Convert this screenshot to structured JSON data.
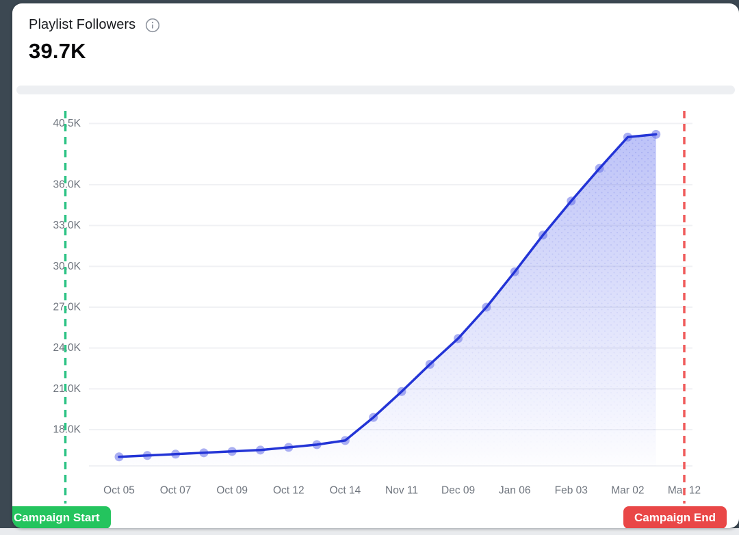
{
  "header": {
    "title": "Playlist Followers",
    "value": "39.7K",
    "info_icon": "info-icon"
  },
  "chart_data": {
    "type": "area",
    "title": "Playlist Followers",
    "current_value": "39.7K",
    "unit": "K followers",
    "x_axis": {
      "labels": [
        "Oct 05",
        "Oct 07",
        "Oct 09",
        "Oct 12",
        "Oct 14",
        "Nov 11",
        "Dec 09",
        "Jan 06",
        "Feb 03",
        "Mar 02",
        "Mar 12"
      ],
      "label_slots": [
        0,
        2,
        4,
        6,
        8,
        10,
        12,
        14,
        16,
        18,
        20
      ]
    },
    "y_axis": {
      "tick_labels": [
        "40.5K",
        "36.0K",
        "33.0K",
        "30.0K",
        "27.0K",
        "24.0K",
        "21.0K",
        "18.0K"
      ],
      "tick_values": [
        40.5,
        36.0,
        33.0,
        30.0,
        27.0,
        24.0,
        21.0,
        18.0
      ],
      "ylim": [
        15.3,
        41.5
      ],
      "grid": true
    },
    "series": [
      {
        "name": "Playlist Followers",
        "slots": [
          0,
          1,
          2,
          3,
          4,
          5,
          6,
          7,
          8,
          9,
          10,
          11,
          12,
          13,
          14,
          15,
          16,
          17,
          18,
          19
        ],
        "values": [
          16.0,
          16.1,
          16.2,
          16.3,
          16.4,
          16.5,
          16.7,
          16.9,
          17.2,
          18.9,
          20.8,
          22.8,
          24.7,
          27.0,
          29.6,
          32.3,
          34.8,
          37.2,
          39.5,
          39.7
        ]
      }
    ],
    "annotations": [
      {
        "id": "campaign-start",
        "label": "Campaign Start",
        "slot": -1.9,
        "line_color": "#2dc385",
        "badge_color": "#24c45e"
      },
      {
        "id": "campaign-end",
        "label": "Campaign End",
        "slot": 20,
        "line_color": "#ef5b5b",
        "badge_color": "#e94747"
      }
    ],
    "colors": {
      "line": "#2334d6",
      "point": "rgba(100,110,232,0.55)",
      "area_top": "rgba(90,104,236,0.40)",
      "area_bottom": "rgba(90,104,236,0.01)",
      "gridline": "#f0f1f4",
      "tick_text": "#6e747d"
    },
    "legend": "none"
  }
}
